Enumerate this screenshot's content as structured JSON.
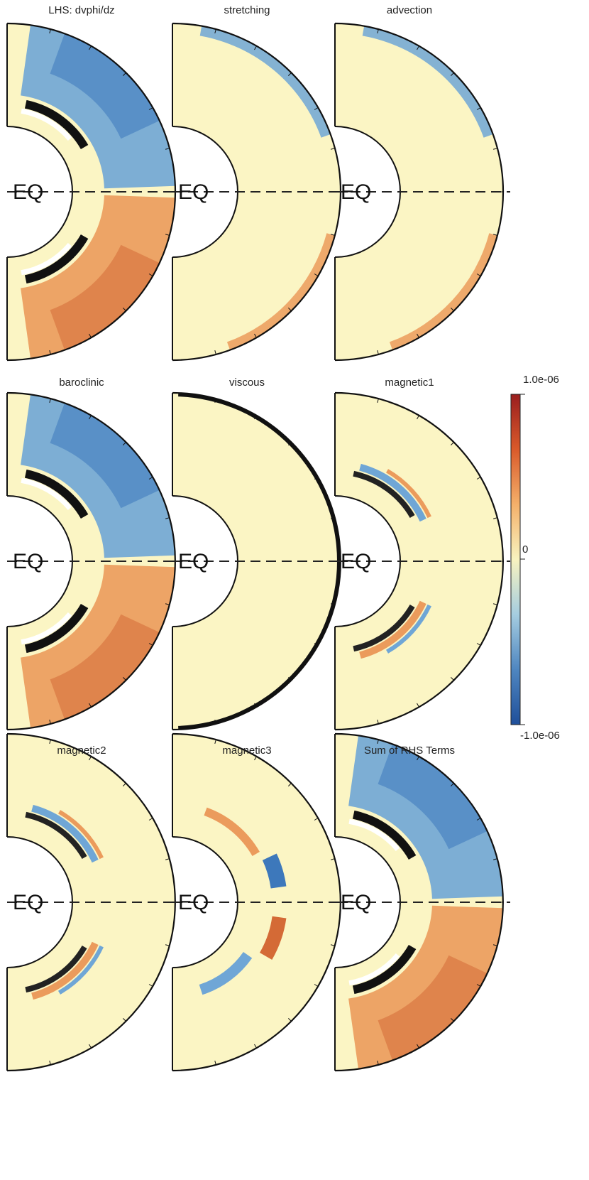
{
  "chart_data": {
    "type": "heatmap",
    "layout": "3x3 grid of meridional half-disk (spherical shell) slices",
    "equator_label": "EQ",
    "panels": [
      {
        "title": "LHS: dvphi/dz",
        "pattern": "strong",
        "north_sign": "negative",
        "south_sign": "positive",
        "magnitude": 0.9
      },
      {
        "title": "stretching",
        "pattern": "weak-edge",
        "north_sign": "negative",
        "south_sign": "positive",
        "magnitude": 0.25
      },
      {
        "title": "advection",
        "pattern": "weak-edge",
        "north_sign": "negative",
        "south_sign": "positive",
        "magnitude": 0.2
      },
      {
        "title": "baroclinic",
        "pattern": "strong",
        "north_sign": "negative",
        "south_sign": "positive",
        "magnitude": 0.85
      },
      {
        "title": "viscous",
        "pattern": "near-zero",
        "north_sign": "negative",
        "south_sign": "positive",
        "magnitude": 0.1
      },
      {
        "title": "magnetic1",
        "pattern": "streaks",
        "north_sign": "negative",
        "south_sign": "positive",
        "magnitude": 0.55
      },
      {
        "title": "magnetic2",
        "pattern": "streaks",
        "north_sign": "negative",
        "south_sign": "positive",
        "magnitude": 0.5
      },
      {
        "title": "magnetic3",
        "pattern": "blobs",
        "north_sign": "positive",
        "south_sign": "positive",
        "magnitude": 0.6
      },
      {
        "title": "Sum of RHS Terms",
        "pattern": "strong",
        "north_sign": "negative",
        "south_sign": "positive",
        "magnitude": 0.9
      }
    ],
    "colorbar": {
      "max_label": "1.0e-06",
      "mid_label": "0",
      "min_label": "-1.0e-06",
      "vmin": -1e-06,
      "vmax": 1e-06,
      "colors": [
        "#1f4f9a",
        "#4f86c0",
        "#a5cde0",
        "#f8f3bf",
        "#f4b06a",
        "#d95a2b",
        "#9a1e1e"
      ]
    },
    "colors": {
      "background": "#fbf5c4",
      "negative_light": "#b9d7ea",
      "negative": "#6fa6d6",
      "negative_dark": "#3d78bb",
      "positive_light": "#f6cf9b",
      "positive": "#eb9b5c",
      "positive_dark": "#d46a36"
    }
  }
}
